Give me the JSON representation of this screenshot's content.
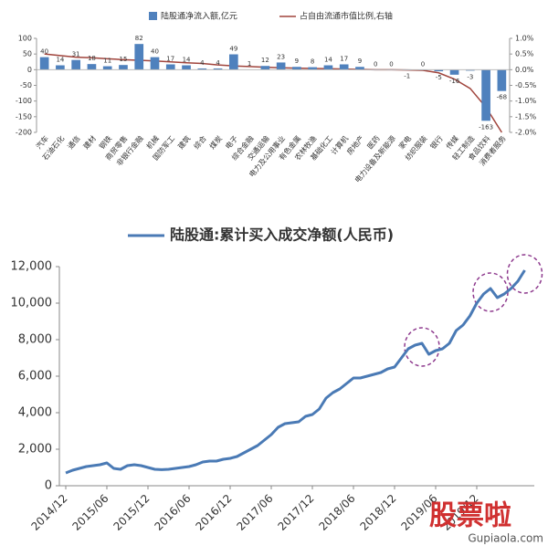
{
  "chart_data": [
    {
      "type": "bar",
      "categories": [
        "汽车",
        "石油石化",
        "通信",
        "建材",
        "钢铁",
        "商贸零售",
        "非银行金融",
        "机械",
        "国防军工",
        "建筑",
        "综合",
        "煤炭",
        "电子",
        "综合金融",
        "交通运输",
        "电力及公用事业",
        "有色金属",
        "农林牧渔",
        "基础化工",
        "计算机",
        "房地产",
        "医药",
        "电力设备及新能源",
        "家电",
        "纺织服装",
        "银行",
        "传媒",
        "轻工制造",
        "食品饮料",
        "消费者服务"
      ],
      "series": [
        {
          "name": "陆股通净流入额,亿元",
          "color": "#4f81bd",
          "values": [
            40,
            14,
            31,
            18,
            11,
            15,
            82,
            40,
            17,
            14,
            4,
            4,
            49,
            1,
            12,
            23,
            9,
            8,
            14,
            17,
            9,
            0,
            0,
            -1,
            0,
            -5,
            -16,
            -3,
            -163,
            -68
          ]
        },
        {
          "name": "占自由流通市值比例,右轴",
          "color": "#a0443c",
          "type": "line",
          "axis": "y2",
          "values": [
            0.5,
            0.45,
            0.4,
            0.38,
            0.35,
            0.32,
            0.3,
            0.28,
            0.25,
            0.22,
            0.2,
            0.15,
            0.12,
            0.1,
            0.08,
            0.06,
            0.05,
            0.04,
            0.03,
            0.02,
            0.01,
            0,
            0,
            -0.01,
            -0.02,
            -0.1,
            -0.3,
            -0.6,
            -1.2,
            -2.0
          ]
        }
      ],
      "ylim": [
        -200,
        100
      ],
      "yticks": [
        -200,
        -150,
        -100,
        -50,
        0,
        50,
        100
      ],
      "y2lim": [
        -2.0,
        1.0
      ],
      "y2ticks": [
        {
          "value": -2.0,
          "label": "-2.0%"
        },
        {
          "value": -1.5,
          "label": "-1.5%"
        },
        {
          "value": -1.0,
          "label": "-1.0%"
        },
        {
          "value": -0.5,
          "label": "-0.5%"
        },
        {
          "value": 0.0,
          "label": "0.0%"
        },
        {
          "value": 0.5,
          "label": "0.5%"
        },
        {
          "value": 1.0,
          "label": "1.0%"
        }
      ]
    },
    {
      "type": "line",
      "x": [
        "2014/12",
        null,
        null,
        null,
        null,
        null,
        "2015/06",
        null,
        null,
        null,
        null,
        null,
        "2015/12",
        null,
        null,
        null,
        null,
        null,
        "2016/06",
        null,
        null,
        null,
        null,
        null,
        "2016/12",
        null,
        null,
        null,
        null,
        null,
        "2017/06",
        null,
        null,
        null,
        null,
        null,
        "2017/12",
        null,
        null,
        null,
        null,
        null,
        "2018/06",
        null,
        null,
        null,
        null,
        null,
        "2018/12",
        null,
        null,
        null,
        null,
        null,
        "2019/06",
        null,
        null,
        null,
        null,
        null,
        "2019/12",
        null,
        null,
        null,
        null,
        null,
        null,
        null
      ],
      "series": [
        {
          "name": "陆股通:累计买入成交净额(人民币)",
          "color": "#4a7ab5",
          "values": [
            700,
            850,
            950,
            1050,
            1100,
            1150,
            1250,
            950,
            900,
            1100,
            1150,
            1100,
            1000,
            900,
            880,
            900,
            950,
            1000,
            1050,
            1150,
            1300,
            1350,
            1350,
            1450,
            1500,
            1600,
            1800,
            2000,
            2200,
            2500,
            2800,
            3200,
            3400,
            3450,
            3500,
            3800,
            3900,
            4200,
            4800,
            5100,
            5300,
            5600,
            5900,
            5900,
            6000,
            6100,
            6200,
            6400,
            6500,
            7000,
            7500,
            7700,
            7800,
            7200,
            7400,
            7500,
            7800,
            8500,
            8800,
            9300,
            10000,
            10500,
            10800,
            10300,
            10500,
            10800,
            11200,
            11800
          ]
        }
      ],
      "ylim": [
        0,
        12000
      ],
      "yticks": [
        0,
        {
          "value": 2000,
          "label": "2,000"
        },
        {
          "value": 4000,
          "label": "4,000"
        },
        {
          "value": 6000,
          "label": "6,000"
        },
        {
          "value": 8000,
          "label": "8,000"
        },
        {
          "value": 10000,
          "label": "10,000"
        },
        {
          "value": 12000,
          "label": "12,000"
        }
      ]
    }
  ],
  "watermark": {
    "text": "股票啦",
    "url": "Gupiaola.com"
  }
}
